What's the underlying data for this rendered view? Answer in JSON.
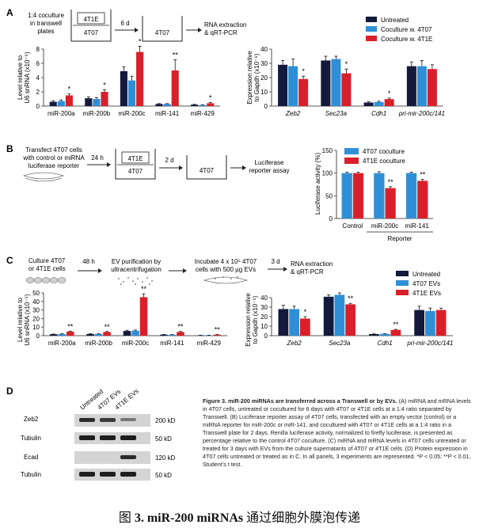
{
  "colors": {
    "untreated": "#141a3c",
    "c4T07": "#2f8fd6",
    "c4T1E": "#d9202a"
  },
  "panel_a": {
    "letter": "A",
    "schematic": {
      "left_text": [
        "1:4 coculture",
        "in transwell",
        "plates"
      ],
      "box_top": "4T1E",
      "box_bottom": "4T07",
      "arrow_label": "6 d",
      "box_right": "4T07",
      "result": [
        "RNA extraction",
        "& qRT-PCR"
      ]
    },
    "legend": [
      "Untreated",
      "Coculture w. 4T07",
      "Coculture w. 4T1E"
    ]
  },
  "panel_b": {
    "letter": "B",
    "schematic": {
      "left_text": [
        "Transfect 4T07 cells",
        "with control or miRNA",
        "luciferase reporter"
      ],
      "arrow1": "24 h",
      "box_top": "4T1E",
      "box_bottom": "4T07",
      "arrow2": "2 d",
      "box_right": "4T07",
      "result": [
        "Luciferase",
        "reporter assay"
      ]
    },
    "legend": [
      "4T07 coculture",
      "4T1E coculture"
    ],
    "group_label": "Reporter"
  },
  "panel_c": {
    "letter": "C",
    "schematic": {
      "step1": [
        "Culture 4T07",
        "or 4T1E cells"
      ],
      "arrow1": "48 h",
      "step2": [
        "EV purification by",
        "ultracentrifugation"
      ],
      "step3": [
        "Incubate 4 x 10⁵ 4T07",
        "cells with 500 µg EVs"
      ],
      "arrow3": "3 d",
      "result": [
        "RNA extraction",
        "& qRT-PCR"
      ]
    },
    "legend": [
      "Untreated",
      "4T07 EVs",
      "4T1E EVs"
    ]
  },
  "panel_d": {
    "letter": "D",
    "lanes": [
      "Untreated",
      "4T07 EVs",
      "4T1E EVs"
    ],
    "rows": [
      {
        "label": "Zeb2",
        "size": "200 kD"
      },
      {
        "label": "Tubulin",
        "size": "50 kD"
      },
      {
        "label": "Ecad",
        "size": "120 kD"
      },
      {
        "label": "Tubulin",
        "size": "50 kD"
      }
    ]
  },
  "caption": {
    "title": "Figure 3. miR-200 miRNAs are transferred across a Transwell or by EVs.",
    "body": "(A) miRNA and mRNA levels in 4T07 cells, untreated or cocultured for 6 days with 4T07 or 4T1E cells at a 1:4 ratio separated by Transwell. (B) Luciferase reporter assay of 4T07 cells, transfected with an empty vector (control) or a miRNA reporter for miR-200c or miR-141, and cocultured with 4T07 or 4T1E cells at a 1:4 ratio in a Transwell plate for 2 days. Renilla luciferase activity, normalized to firefly luciferase, is presented as percentage relative to the control 4T07 coculture. (C) miRNA and mRNA levels in 4T07 cells untreated or treated for 3 days with EVs from the culture supernatants of 4T07 or 4T1E cells. (D) Protein expression in 4T07 cells untreated or treated as in C. In all panels, 3 experiments are represented. *P < 0.05; **P < 0.01, Student’s t test."
  },
  "bottom_title": {
    "prefix": "图",
    "bold": "3. miR-200 miRNAs",
    "rest": "通过细胞外膜泡传递"
  },
  "chart_data": [
    {
      "id": "A-miRNA",
      "type": "bar",
      "ylabel": "Level relative to U6 snRNA (x10⁻⁵)",
      "ylim": [
        0,
        8
      ],
      "yticks": [
        0,
        2,
        4,
        6,
        8
      ],
      "categories": [
        "miR-200a",
        "miR-200b",
        "miR-200c",
        "miR-141",
        "miR-429"
      ],
      "series": [
        {
          "name": "Untreated",
          "values": [
            0.6,
            1.1,
            4.9,
            0.3,
            0.2
          ],
          "err": [
            0.15,
            0.2,
            0.6,
            0.05,
            0.05
          ]
        },
        {
          "name": "Coculture w. 4T07",
          "values": [
            0.7,
            1.0,
            3.6,
            0.3,
            0.15
          ],
          "err": [
            0.15,
            0.2,
            0.6,
            0.05,
            0.05
          ]
        },
        {
          "name": "Coculture w. 4T1E",
          "values": [
            1.5,
            2.0,
            7.6,
            5.0,
            0.4
          ],
          "err": [
            0.2,
            0.3,
            0.8,
            1.5,
            0.1
          ]
        }
      ],
      "annotations": [
        "*",
        "*",
        "*",
        "**",
        "*"
      ]
    },
    {
      "id": "A-mRNA",
      "type": "bar",
      "ylabel": "Expression relative to Gapdh (x10⁻⁵)",
      "ylim": [
        0,
        40
      ],
      "yticks": [
        0,
        10,
        20,
        30,
        40
      ],
      "categories": [
        "Zeb2",
        "Sec23a",
        "Cdh1",
        "pri-mir-200c/141"
      ],
      "series": [
        {
          "name": "Untreated",
          "values": [
            29,
            32,
            2.5,
            28
          ],
          "err": [
            3,
            3,
            0.5,
            3
          ]
        },
        {
          "name": "Coculture w. 4T07",
          "values": [
            28,
            33,
            2.9,
            28
          ],
          "err": [
            5,
            2,
            0.5,
            4
          ]
        },
        {
          "name": "Coculture w. 4T1E",
          "values": [
            19,
            23,
            4.9,
            26
          ],
          "err": [
            2,
            3,
            0.7,
            3
          ]
        }
      ],
      "annotations": [
        "*",
        "*",
        "*",
        ""
      ]
    },
    {
      "id": "B",
      "type": "bar",
      "ylabel": "Luciferase activity (%)",
      "ylim": [
        0,
        150
      ],
      "yticks": [
        0,
        50,
        100,
        150
      ],
      "categories": [
        "Control",
        "miR-200c",
        "miR-141"
      ],
      "series": [
        {
          "name": "4T07 coculture",
          "values": [
            100,
            100,
            100
          ],
          "err": [
            2,
            3,
            2
          ]
        },
        {
          "name": "4T1E coculture",
          "values": [
            100,
            67,
            83
          ],
          "err": [
            2,
            3,
            3
          ]
        }
      ],
      "annotations": [
        "",
        "**",
        "**"
      ]
    },
    {
      "id": "C-miRNA",
      "type": "bar",
      "ylabel": "Level relative to U6 snRNA (x10⁻⁵)",
      "ylim": [
        0,
        50
      ],
      "yticks": [
        0,
        10,
        20,
        30,
        40,
        50
      ],
      "categories": [
        "miR-200a",
        "miR-200b",
        "miR-200c",
        "miR-141",
        "miR-429"
      ],
      "series": [
        {
          "name": "Untreated",
          "values": [
            1.7,
            2.0,
            5.5,
            1.2,
            0.4
          ],
          "err": [
            0.2,
            0.3,
            0.8,
            0.2,
            0.1
          ]
        },
        {
          "name": "4T07 EVs",
          "values": [
            2.0,
            2.0,
            5.8,
            1.1,
            0.5
          ],
          "err": [
            0.2,
            0.3,
            0.8,
            0.2,
            0.1
          ]
        },
        {
          "name": "4T1E EVs",
          "values": [
            4.8,
            4.3,
            45,
            4.3,
            1.1
          ],
          "err": [
            0.5,
            0.5,
            4,
            0.6,
            0.2
          ]
        }
      ],
      "annotations": [
        "**",
        "**",
        "**",
        "**",
        "**"
      ]
    },
    {
      "id": "C-mRNA",
      "type": "bar",
      "ylabel": "Expression relative to Gapdh (x10⁻⁵)",
      "ylim": [
        0,
        40
      ],
      "yticks": [
        0,
        10,
        20,
        30,
        40
      ],
      "categories": [
        "Zeb2",
        "Sec23a",
        "Cdh1",
        "pri-mir-200c/141"
      ],
      "series": [
        {
          "name": "Untreated",
          "values": [
            28,
            41,
            1.7,
            27
          ],
          "err": [
            4,
            2,
            0.2,
            4
          ]
        },
        {
          "name": "4T07 EVs",
          "values": [
            28,
            43,
            1.9,
            26
          ],
          "err": [
            3,
            2,
            0.2,
            3
          ]
        },
        {
          "name": "4T1E EVs",
          "values": [
            18,
            33,
            6.1,
            27
          ],
          "err": [
            2,
            1,
            0.5,
            2
          ]
        }
      ],
      "annotations": [
        "*",
        "**",
        "**",
        ""
      ]
    }
  ]
}
